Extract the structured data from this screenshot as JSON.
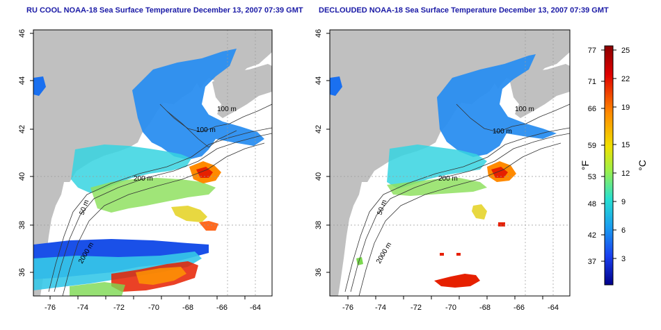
{
  "panels": [
    {
      "title": "RU COOL NOAA-18 Sea Surface Temperature December 13, 2007 07:39 GMT"
    },
    {
      "title": "DECLOUDED NOAA-18 Sea Surface Temperature December 13, 2007 07:39 GMT"
    }
  ],
  "map": {
    "lon_ticks": [
      "-76",
      "-74",
      "-72",
      "-70",
      "-68",
      "-66",
      "-64"
    ],
    "lat_ticks": [
      "46",
      "44",
      "42",
      "40",
      "38",
      "36"
    ],
    "contour_labels": {
      "left": [
        "100 m",
        "100 m",
        "200 m",
        "50 m",
        "2000 m"
      ],
      "right": [
        "100 m",
        "100 m",
        "200 m",
        "50 m",
        "2000 m"
      ]
    },
    "land_color": "#c0c0c0",
    "ocean_nodata_color": "#ffffff"
  },
  "colorbar": {
    "f_ticks": [
      "77",
      "71",
      "66",
      "59",
      "53",
      "48",
      "42",
      "37"
    ],
    "c_ticks": [
      "25",
      "22",
      "19",
      "15",
      "12",
      "9",
      "6",
      "3"
    ],
    "f_label": "°F",
    "c_label": "°C",
    "colors": [
      "#d40000",
      "#ff7a00",
      "#ffd200",
      "#a8f04a",
      "#33e0c8",
      "#1aa0f0",
      "#1a3cf0",
      "#00007a"
    ]
  }
}
